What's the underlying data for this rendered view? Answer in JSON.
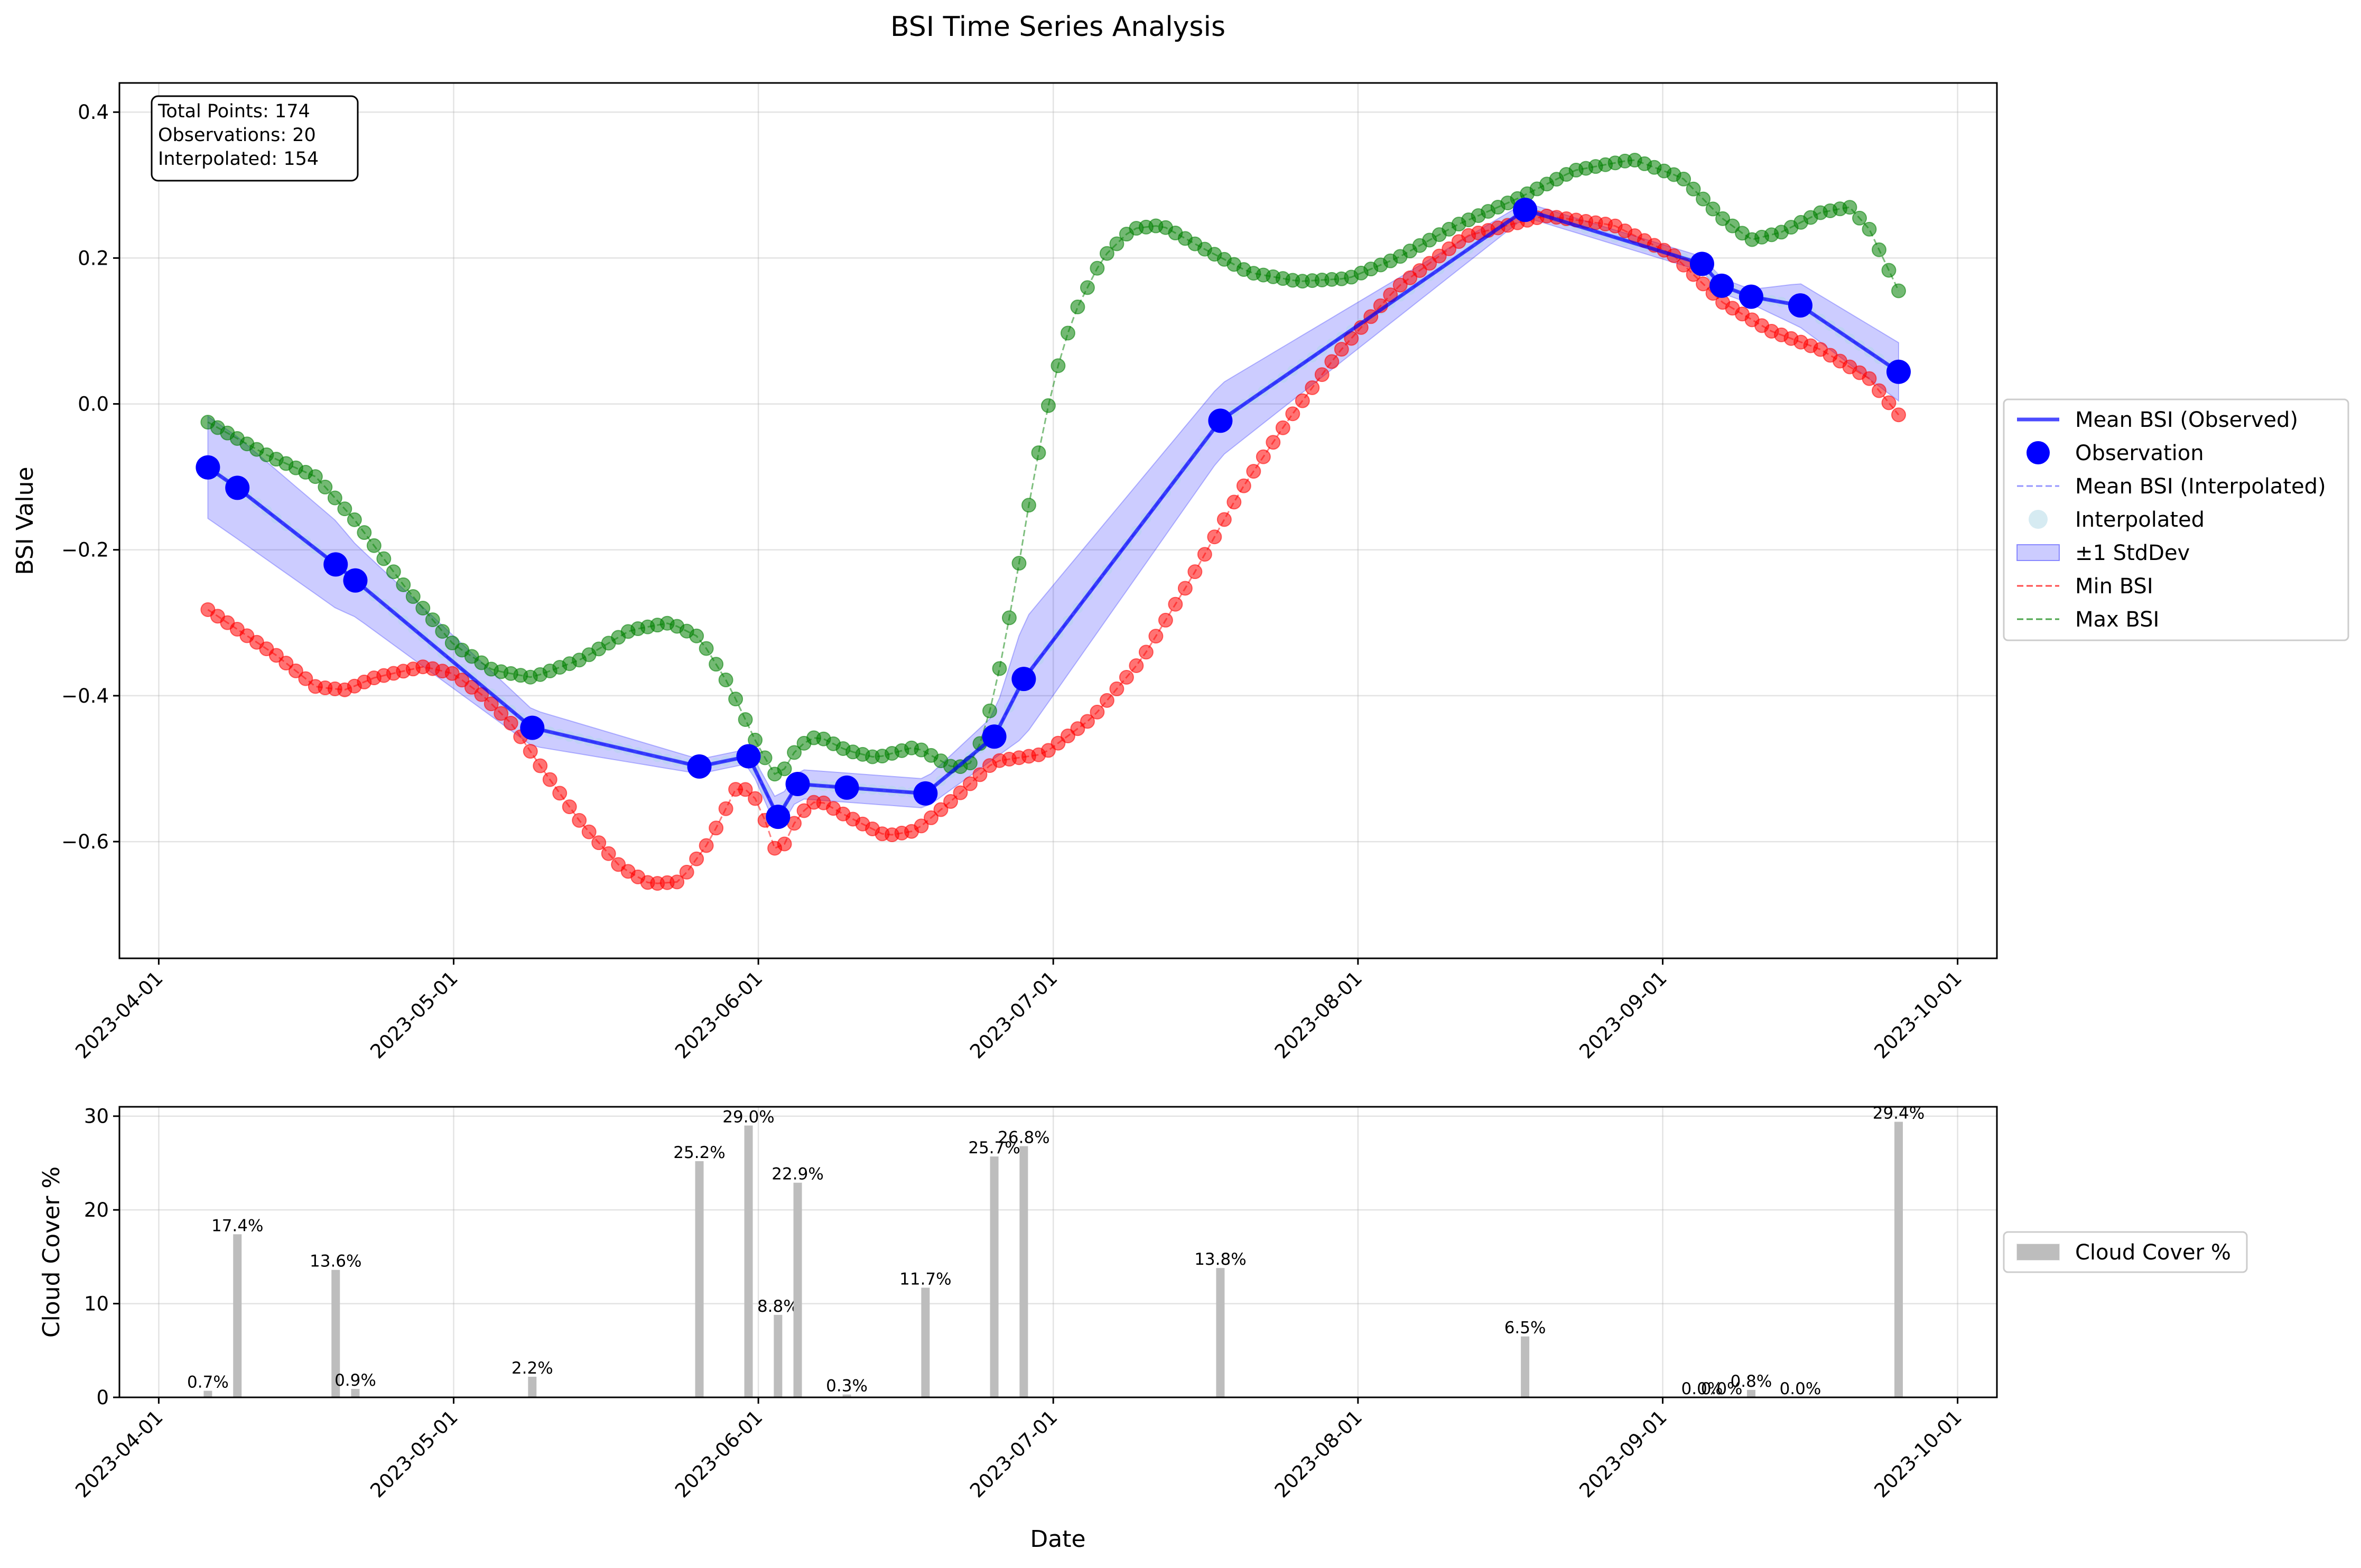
{
  "title": "BSI Time Series Analysis",
  "colors": {
    "observed": "#0000ff",
    "interp_line": "#6a6aff",
    "interp_point": "#add8e6",
    "stddev_fill": "#0000ff",
    "min": "#ff0000",
    "max": "#008000",
    "cloud": "#bdbdbd"
  },
  "stats_box": {
    "line1": "Total Points: 174",
    "line2": "Observations: 20",
    "line3": "Interpolated: 154"
  },
  "top_axis": {
    "ylabel": "BSI Value"
  },
  "bottom_axis": {
    "ylabel": "Cloud Cover %",
    "xlabel": "Date"
  },
  "legend_top": [
    {
      "label": "Mean BSI (Observed)",
      "kind": "line",
      "color": "#0000ff"
    },
    {
      "label": "Observation",
      "kind": "dot",
      "color": "#0000ff"
    },
    {
      "label": "Mean BSI (Interpolated)",
      "kind": "dash",
      "color": "#6a6aff"
    },
    {
      "label": "Interpolated",
      "kind": "lightdot",
      "color": "#add8e6"
    },
    {
      "label": "±1 StdDev",
      "kind": "patch",
      "color": "#0000ff"
    },
    {
      "label": "Min BSI",
      "kind": "dash",
      "color": "#ff0000"
    },
    {
      "label": "Max BSI",
      "kind": "dash",
      "color": "#008000"
    }
  ],
  "legend_bottom": [
    {
      "label": "Cloud Cover %",
      "kind": "patch",
      "color": "#bdbdbd"
    }
  ],
  "chart_data": [
    {
      "type": "line",
      "title": "BSI Time Series Analysis",
      "xlabel": "",
      "ylabel": "BSI Value",
      "x_type": "date",
      "xlim": [
        "2023-03-28",
        "2023-10-05"
      ],
      "ylim": [
        -0.76,
        0.44
      ],
      "x_ticks": [
        "2023-04-01",
        "2023-05-01",
        "2023-06-01",
        "2023-07-01",
        "2023-08-01",
        "2023-09-01",
        "2023-10-01"
      ],
      "y_ticks": [
        -0.6,
        -0.4,
        -0.2,
        0.0,
        0.2,
        0.4
      ],
      "y_tick_labels": [
        "−0.6",
        "−0.4",
        "−0.2",
        "0.0",
        "0.2",
        "0.4"
      ],
      "grid": true,
      "legend_position": "outside right",
      "observations": [
        {
          "date": "2023-04-06",
          "mean": -0.087,
          "std": 0.07
        },
        {
          "date": "2023-04-09",
          "mean": -0.115,
          "std": 0.07
        },
        {
          "date": "2023-04-19",
          "mean": -0.22,
          "std": 0.06
        },
        {
          "date": "2023-04-21",
          "mean": -0.242,
          "std": 0.05
        },
        {
          "date": "2023-05-09",
          "mean": -0.444,
          "std": 0.025
        },
        {
          "date": "2023-05-26",
          "mean": -0.497,
          "std": 0.01
        },
        {
          "date": "2023-05-31",
          "mean": -0.483,
          "std": 0.01
        },
        {
          "date": "2023-06-03",
          "mean": -0.566,
          "std": 0.02
        },
        {
          "date": "2023-06-05",
          "mean": -0.521,
          "std": 0.02
        },
        {
          "date": "2023-06-10",
          "mean": -0.526,
          "std": 0.02
        },
        {
          "date": "2023-06-18",
          "mean": -0.534,
          "std": 0.02
        },
        {
          "date": "2023-06-25",
          "mean": -0.456,
          "std": 0.03
        },
        {
          "date": "2023-06-28",
          "mean": -0.377,
          "std": 0.08
        },
        {
          "date": "2023-07-18",
          "mean": -0.023,
          "std": 0.05
        },
        {
          "date": "2023-08-18",
          "mean": 0.266,
          "std": 0.01
        },
        {
          "date": "2023-09-05",
          "mean": 0.192,
          "std": 0.01
        },
        {
          "date": "2023-09-07",
          "mean": 0.162,
          "std": 0.01
        },
        {
          "date": "2023-09-10",
          "mean": 0.147,
          "std": 0.01
        },
        {
          "date": "2023-09-15",
          "mean": 0.135,
          "std": 0.03
        },
        {
          "date": "2023-09-25",
          "mean": 0.044,
          "std": 0.04
        }
      ],
      "min_bsi": [
        {
          "date": "2023-04-06",
          "value": -0.282
        },
        {
          "date": "2023-04-13",
          "value": -0.345
        },
        {
          "date": "2023-04-17",
          "value": -0.388
        },
        {
          "date": "2023-04-20",
          "value": -0.392
        },
        {
          "date": "2023-04-23",
          "value": -0.375
        },
        {
          "date": "2023-04-28",
          "value": -0.36
        },
        {
          "date": "2023-05-01",
          "value": -0.37
        },
        {
          "date": "2023-05-04",
          "value": -0.4
        },
        {
          "date": "2023-05-07",
          "value": -0.44
        },
        {
          "date": "2023-05-10",
          "value": -0.5
        },
        {
          "date": "2023-05-14",
          "value": -0.575
        },
        {
          "date": "2023-05-18",
          "value": -0.635
        },
        {
          "date": "2023-05-21",
          "value": -0.658
        },
        {
          "date": "2023-05-24",
          "value": -0.655
        },
        {
          "date": "2023-05-27",
          "value": -0.6
        },
        {
          "date": "2023-05-30",
          "value": -0.52
        },
        {
          "date": "2023-06-01",
          "value": -0.545
        },
        {
          "date": "2023-06-03",
          "value": -0.622
        },
        {
          "date": "2023-06-05",
          "value": -0.565
        },
        {
          "date": "2023-06-07",
          "value": -0.542
        },
        {
          "date": "2023-06-10",
          "value": -0.565
        },
        {
          "date": "2023-06-14",
          "value": -0.592
        },
        {
          "date": "2023-06-17",
          "value": -0.585
        },
        {
          "date": "2023-06-21",
          "value": -0.54
        },
        {
          "date": "2023-06-25",
          "value": -0.49
        },
        {
          "date": "2023-06-30",
          "value": -0.48
        },
        {
          "date": "2023-07-05",
          "value": -0.43
        },
        {
          "date": "2023-07-10",
          "value": -0.35
        },
        {
          "date": "2023-07-15",
          "value": -0.24
        },
        {
          "date": "2023-07-20",
          "value": -0.12
        },
        {
          "date": "2023-07-25",
          "value": -0.02
        },
        {
          "date": "2023-07-30",
          "value": 0.07
        },
        {
          "date": "2023-08-05",
          "value": 0.16
        },
        {
          "date": "2023-08-12",
          "value": 0.23
        },
        {
          "date": "2023-08-20",
          "value": 0.258
        },
        {
          "date": "2023-08-27",
          "value": 0.245
        },
        {
          "date": "2023-09-02",
          "value": 0.205
        },
        {
          "date": "2023-09-07",
          "value": 0.14
        },
        {
          "date": "2023-09-12",
          "value": 0.1
        },
        {
          "date": "2023-09-17",
          "value": 0.075
        },
        {
          "date": "2023-09-22",
          "value": 0.035
        },
        {
          "date": "2023-09-25",
          "value": -0.015
        }
      ],
      "max_bsi": [
        {
          "date": "2023-04-06",
          "value": -0.025
        },
        {
          "date": "2023-04-12",
          "value": -0.07
        },
        {
          "date": "2023-04-17",
          "value": -0.1
        },
        {
          "date": "2023-04-21",
          "value": -0.16
        },
        {
          "date": "2023-04-26",
          "value": -0.25
        },
        {
          "date": "2023-05-01",
          "value": -0.33
        },
        {
          "date": "2023-05-05",
          "value": -0.365
        },
        {
          "date": "2023-05-09",
          "value": -0.375
        },
        {
          "date": "2023-05-14",
          "value": -0.35
        },
        {
          "date": "2023-05-19",
          "value": -0.31
        },
        {
          "date": "2023-05-23",
          "value": -0.3
        },
        {
          "date": "2023-05-26",
          "value": -0.32
        },
        {
          "date": "2023-05-29",
          "value": -0.385
        },
        {
          "date": "2023-06-01",
          "value": -0.47
        },
        {
          "date": "2023-06-03",
          "value": -0.515
        },
        {
          "date": "2023-06-05",
          "value": -0.47
        },
        {
          "date": "2023-06-07",
          "value": -0.455
        },
        {
          "date": "2023-06-10",
          "value": -0.475
        },
        {
          "date": "2023-06-13",
          "value": -0.485
        },
        {
          "date": "2023-06-17",
          "value": -0.47
        },
        {
          "date": "2023-06-21",
          "value": -0.5
        },
        {
          "date": "2023-06-23",
          "value": -0.49
        },
        {
          "date": "2023-06-25",
          "value": -0.4
        },
        {
          "date": "2023-06-27",
          "value": -0.26
        },
        {
          "date": "2023-06-29",
          "value": -0.1
        },
        {
          "date": "2023-07-01",
          "value": 0.03
        },
        {
          "date": "2023-07-03",
          "value": 0.12
        },
        {
          "date": "2023-07-06",
          "value": 0.2
        },
        {
          "date": "2023-07-09",
          "value": 0.24
        },
        {
          "date": "2023-07-12",
          "value": 0.245
        },
        {
          "date": "2023-07-16",
          "value": 0.215
        },
        {
          "date": "2023-07-21",
          "value": 0.18
        },
        {
          "date": "2023-07-26",
          "value": 0.168
        },
        {
          "date": "2023-07-31",
          "value": 0.172
        },
        {
          "date": "2023-08-05",
          "value": 0.2
        },
        {
          "date": "2023-08-11",
          "value": 0.245
        },
        {
          "date": "2023-08-17",
          "value": 0.28
        },
        {
          "date": "2023-08-23",
          "value": 0.32
        },
        {
          "date": "2023-08-29",
          "value": 0.335
        },
        {
          "date": "2023-09-03",
          "value": 0.31
        },
        {
          "date": "2023-09-07",
          "value": 0.255
        },
        {
          "date": "2023-09-10",
          "value": 0.225
        },
        {
          "date": "2023-09-13",
          "value": 0.235
        },
        {
          "date": "2023-09-17",
          "value": 0.262
        },
        {
          "date": "2023-09-20",
          "value": 0.27
        },
        {
          "date": "2023-09-22",
          "value": 0.24
        },
        {
          "date": "2023-09-25",
          "value": 0.155
        }
      ]
    },
    {
      "type": "bar",
      "xlabel": "Date",
      "ylabel": "Cloud Cover %",
      "x_type": "date",
      "xlim": [
        "2023-03-28",
        "2023-10-05"
      ],
      "ylim": [
        0,
        31
      ],
      "y_ticks": [
        0,
        10,
        20,
        30
      ],
      "x_ticks": [
        "2023-04-01",
        "2023-05-01",
        "2023-06-01",
        "2023-07-01",
        "2023-08-01",
        "2023-09-01",
        "2023-10-01"
      ],
      "grid": true,
      "legend_position": "outside right",
      "bars": [
        {
          "date": "2023-04-06",
          "value": 0.7,
          "label": "0.7%"
        },
        {
          "date": "2023-04-09",
          "value": 17.4,
          "label": "17.4%"
        },
        {
          "date": "2023-04-19",
          "value": 13.6,
          "label": "13.6%"
        },
        {
          "date": "2023-04-21",
          "value": 0.9,
          "label": "0.9%"
        },
        {
          "date": "2023-05-09",
          "value": 2.2,
          "label": "2.2%"
        },
        {
          "date": "2023-05-26",
          "value": 25.2,
          "label": "25.2%"
        },
        {
          "date": "2023-05-31",
          "value": 29.0,
          "label": "29.0%"
        },
        {
          "date": "2023-06-03",
          "value": 8.8,
          "label": "8.8%"
        },
        {
          "date": "2023-06-05",
          "value": 22.9,
          "label": "22.9%"
        },
        {
          "date": "2023-06-10",
          "value": 0.3,
          "label": "0.3%"
        },
        {
          "date": "2023-06-18",
          "value": 11.7,
          "label": "11.7%"
        },
        {
          "date": "2023-06-25",
          "value": 25.7,
          "label": "25.7%"
        },
        {
          "date": "2023-06-28",
          "value": 26.8,
          "label": "26.8%"
        },
        {
          "date": "2023-07-18",
          "value": 13.8,
          "label": "13.8%"
        },
        {
          "date": "2023-08-18",
          "value": 6.5,
          "label": "6.5%"
        },
        {
          "date": "2023-09-05",
          "value": 0.0,
          "label": "0.0%"
        },
        {
          "date": "2023-09-07",
          "value": 0.0,
          "label": "0.0%"
        },
        {
          "date": "2023-09-10",
          "value": 0.8,
          "label": "0.8%"
        },
        {
          "date": "2023-09-15",
          "value": 0.0,
          "label": "0.0%"
        },
        {
          "date": "2023-09-25",
          "value": 29.4,
          "label": "29.4%"
        }
      ]
    }
  ]
}
